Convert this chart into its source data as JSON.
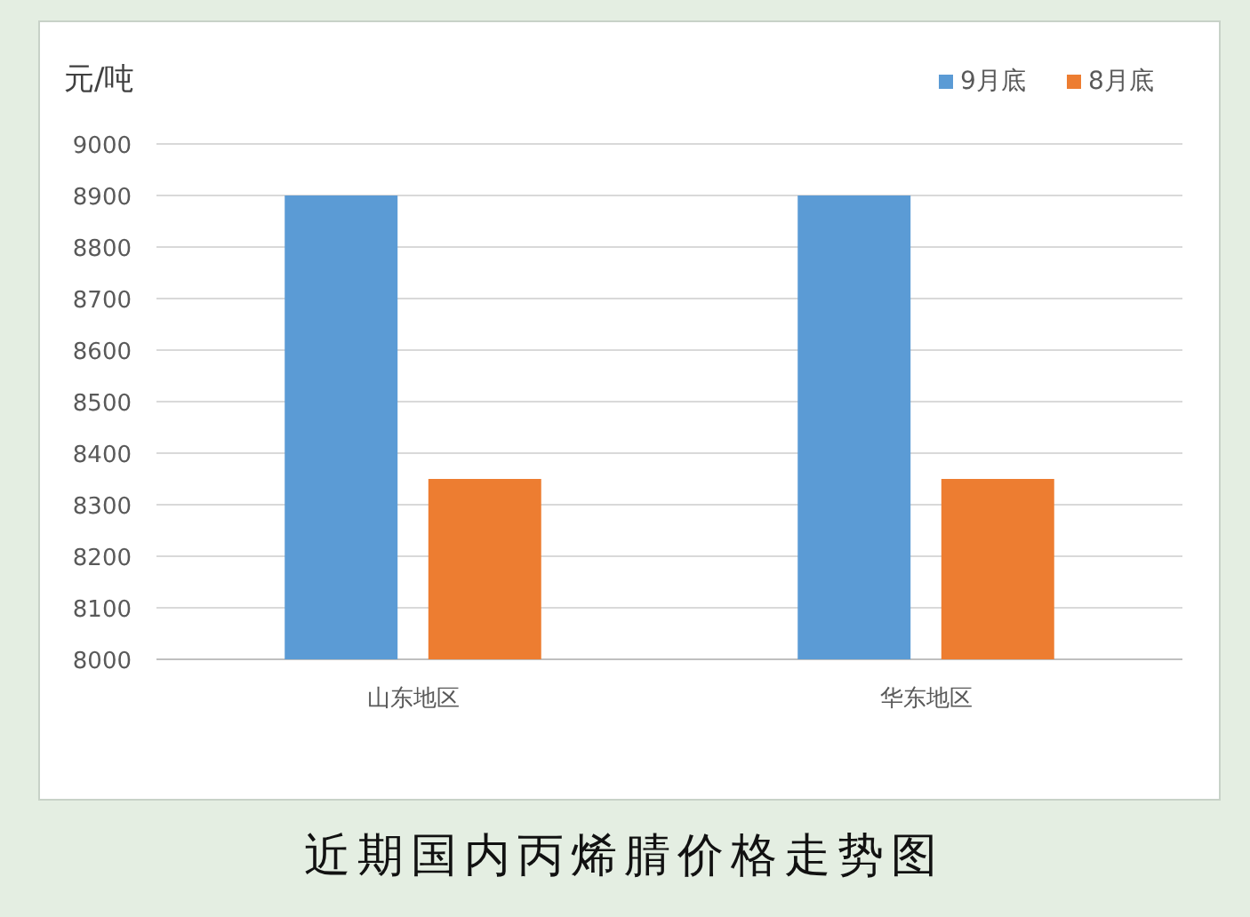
{
  "chart_data": {
    "type": "bar",
    "title": "近期国内丙烯腈价格走势图",
    "ylabel": "元/吨",
    "categories": [
      "山东地区",
      "华东地区"
    ],
    "series": [
      {
        "name": "9月底",
        "color": "#5b9bd5",
        "values": [
          8900,
          8900
        ]
      },
      {
        "name": "8月底",
        "color": "#ed7d31",
        "values": [
          8350,
          8350
        ]
      }
    ],
    "ylim": [
      8000,
      9000
    ],
    "yticks": [
      8000,
      8100,
      8200,
      8300,
      8400,
      8500,
      8600,
      8700,
      8800,
      8900,
      9000
    ],
    "grid": "y",
    "legend": "top right"
  }
}
